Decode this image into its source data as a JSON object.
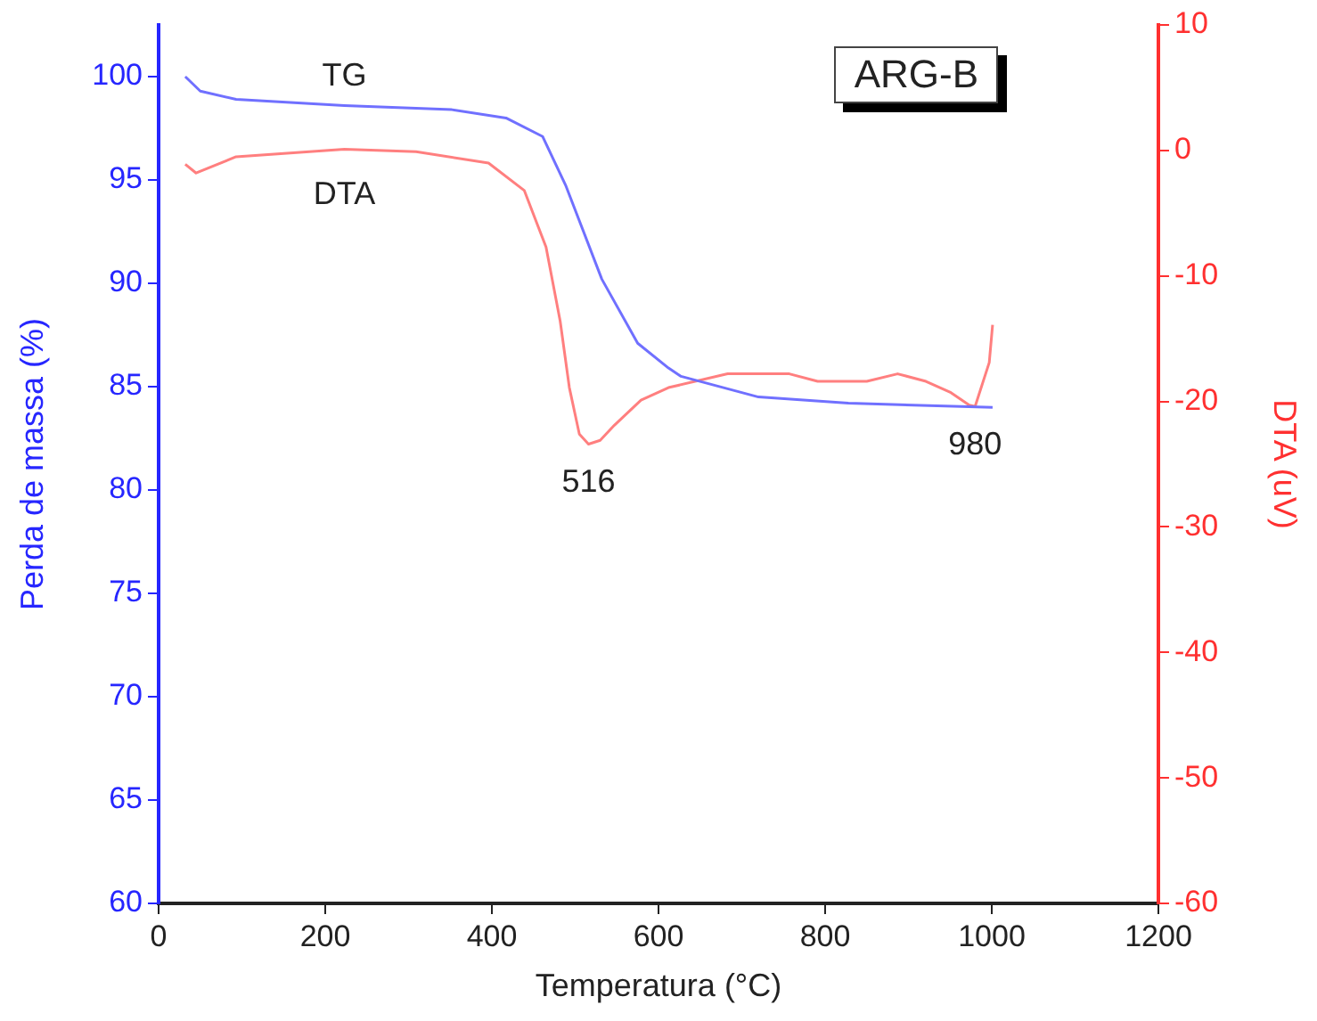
{
  "chart_data": {
    "type": "line",
    "xlabel": "Temperatura (°C)",
    "ylabel": "Perda de massa (%)",
    "y2label": "DTA (uV)",
    "xlim": [
      0,
      1200
    ],
    "xticks": [
      0,
      200,
      400,
      600,
      800,
      1000,
      1200
    ],
    "ylim": [
      60,
      102.5
    ],
    "yticks": [
      60,
      65,
      70,
      75,
      80,
      85,
      90,
      95,
      100
    ],
    "y2lim": [
      -60,
      10
    ],
    "y2ticks": [
      -60,
      -50,
      -40,
      -30,
      -20,
      -10,
      0,
      10
    ],
    "grid": false,
    "legend": false,
    "marker": "none",
    "line_style": "solid",
    "series": [
      {
        "name": "TG",
        "color": "#7070ff",
        "x": [
          32,
          50,
          93,
          223,
          352,
          417,
          461,
          489,
          532,
          575,
          612,
          627,
          720,
          828,
          1001
        ],
        "values": [
          100.0,
          99.3,
          98.9,
          98.6,
          98.4,
          98.0,
          97.1,
          94.7,
          90.2,
          87.1,
          85.9,
          85.5,
          84.5,
          84.2,
          84.0
        ]
      },
      {
        "name": "DTA",
        "color": "#ff7f7f",
        "axis": "y2",
        "x": [
          32,
          45,
          93,
          223,
          309,
          396,
          439,
          465,
          482,
          493,
          505,
          516,
          530,
          547,
          579,
          612,
          683,
          757,
          791,
          850,
          887,
          921,
          951,
          973,
          980,
          997,
          1001
        ],
        "values": [
          -1.1,
          -1.8,
          -0.5,
          0.1,
          -0.1,
          -1.0,
          -3.2,
          -7.7,
          -13.6,
          -18.9,
          -22.6,
          -23.4,
          -23.1,
          -21.9,
          -19.9,
          -18.9,
          -17.8,
          -17.8,
          -18.4,
          -18.4,
          -17.8,
          -18.4,
          -19.3,
          -20.3,
          -20.4,
          -16.9,
          -13.9
        ]
      }
    ],
    "annotations": [
      "ARG-B",
      "516",
      "980"
    ]
  }
}
